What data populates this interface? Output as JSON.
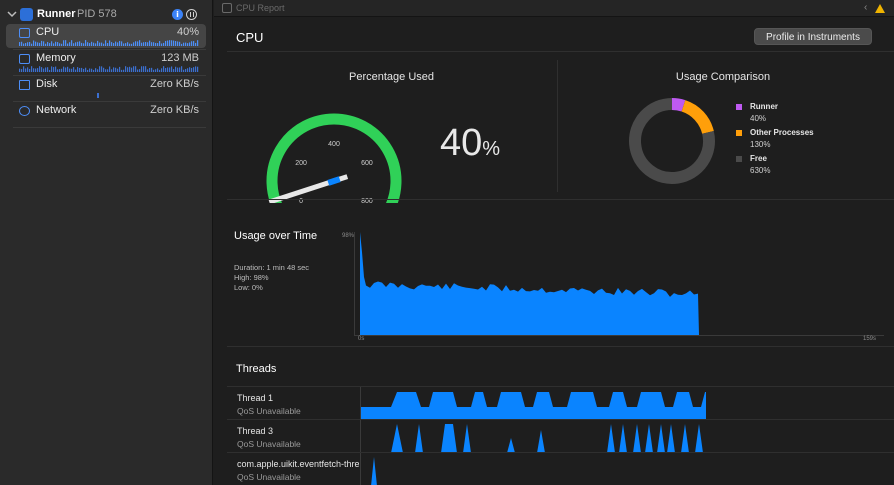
{
  "process": {
    "name": "Runner",
    "pid": "PID 578"
  },
  "gauges": [
    {
      "label": "CPU",
      "value": "40%"
    },
    {
      "label": "Memory",
      "value": "123 MB"
    },
    {
      "label": "Disk",
      "value": "Zero KB/s"
    },
    {
      "label": "Network",
      "value": "Zero KB/s"
    }
  ],
  "tab": {
    "title": "CPU Report"
  },
  "header": {
    "title": "CPU",
    "profile_button": "Profile in Instruments"
  },
  "percentage_used": {
    "title": "Percentage Used",
    "value": 40,
    "display": "40",
    "unit": "%",
    "ticks": [
      "0",
      "200",
      "400",
      "600",
      "800"
    ]
  },
  "usage_comparison": {
    "title": "Usage Comparison",
    "items": [
      {
        "name": "Runner",
        "value": "40%",
        "color": "#bf5af2"
      },
      {
        "name": "Other Processes",
        "value": "130%",
        "color": "#ff9f0a"
      },
      {
        "name": "Free",
        "value": "630%",
        "color": "#4a4a4a"
      }
    ]
  },
  "usage_over_time": {
    "title": "Usage over Time",
    "duration": "Duration: 1 min 48 sec",
    "high": "High: 98%",
    "low": "Low: 0%",
    "y_top_label": "98%",
    "x_start_label": "0s",
    "x_end_label": "159s",
    "color": "#0a84ff"
  },
  "threads": {
    "title": "Threads",
    "items": [
      {
        "name": "Thread 1",
        "qos": "QoS Unavailable"
      },
      {
        "name": "Thread 3",
        "qos": "QoS Unavailable"
      },
      {
        "name": "com.apple.uikit.eventfetch-thread",
        "qos": "QoS Unavailable"
      }
    ]
  }
}
